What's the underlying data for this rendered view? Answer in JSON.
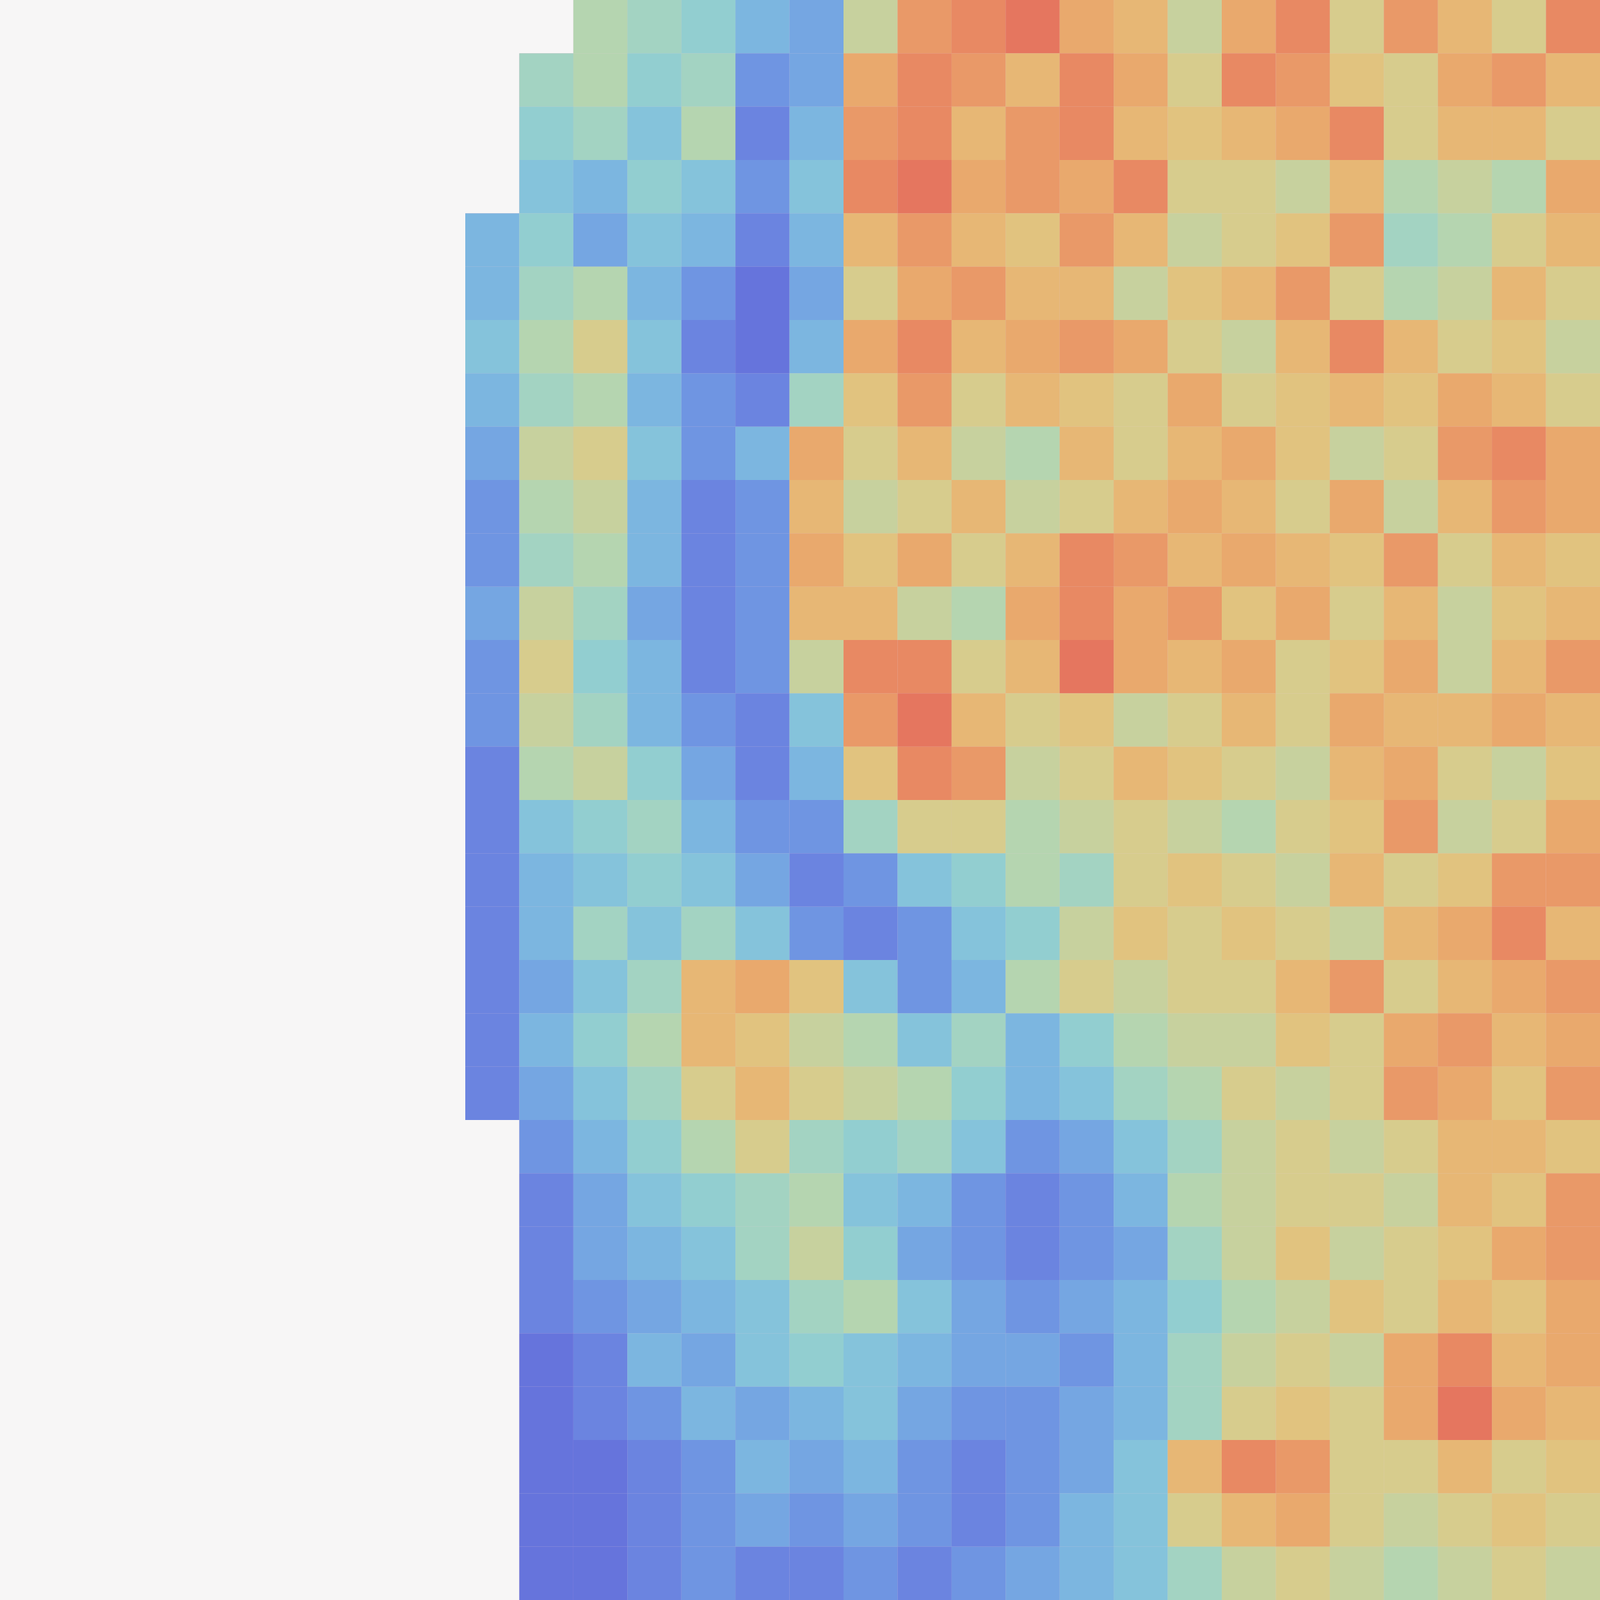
{
  "chart_data": {
    "type": "heatmap",
    "tick_labels": false,
    "zlim": [
      0,
      1
    ],
    "cells": [
      [
        null,
        null,
        0.5,
        0.45,
        0.4,
        0.3,
        0.25,
        0.55,
        0.8,
        0.85,
        0.9,
        0.75,
        0.7,
        0.55,
        0.75,
        0.85,
        0.6,
        0.8,
        0.7,
        0.6,
        0.85
      ],
      [
        null,
        0.45,
        0.5,
        0.4,
        0.45,
        0.2,
        0.25,
        0.75,
        0.85,
        0.8,
        0.7,
        0.85,
        0.75,
        0.6,
        0.85,
        0.8,
        0.65,
        0.6,
        0.75,
        0.8,
        0.7
      ],
      [
        null,
        0.4,
        0.45,
        0.35,
        0.5,
        0.15,
        0.3,
        0.8,
        0.85,
        0.7,
        0.8,
        0.85,
        0.7,
        0.65,
        0.7,
        0.75,
        0.85,
        0.6,
        0.7,
        0.7,
        0.6
      ],
      [
        null,
        0.35,
        0.3,
        0.4,
        0.35,
        0.2,
        0.35,
        0.85,
        0.9,
        0.75,
        0.8,
        0.75,
        0.85,
        0.6,
        0.6,
        0.55,
        0.7,
        0.5,
        0.55,
        0.5,
        0.75
      ],
      [
        0.3,
        0.4,
        0.25,
        0.35,
        0.3,
        0.15,
        0.3,
        0.7,
        0.8,
        0.7,
        0.65,
        0.8,
        0.7,
        0.55,
        0.6,
        0.65,
        0.8,
        0.45,
        0.5,
        0.6,
        0.7
      ],
      [
        0.3,
        0.45,
        0.5,
        0.3,
        0.2,
        0.1,
        0.25,
        0.6,
        0.75,
        0.8,
        0.7,
        0.7,
        0.55,
        0.65,
        0.7,
        0.8,
        0.6,
        0.5,
        0.55,
        0.7,
        0.6
      ],
      [
        0.35,
        0.5,
        0.6,
        0.35,
        0.15,
        0.1,
        0.3,
        0.75,
        0.85,
        0.7,
        0.75,
        0.8,
        0.75,
        0.6,
        0.55,
        0.7,
        0.85,
        0.7,
        0.6,
        0.65,
        0.55
      ],
      [
        0.3,
        0.45,
        0.5,
        0.3,
        0.2,
        0.15,
        0.45,
        0.65,
        0.8,
        0.6,
        0.7,
        0.65,
        0.6,
        0.75,
        0.6,
        0.65,
        0.7,
        0.65,
        0.75,
        0.7,
        0.6
      ],
      [
        0.25,
        0.55,
        0.6,
        0.35,
        0.2,
        0.3,
        0.75,
        0.6,
        0.7,
        0.55,
        0.5,
        0.7,
        0.6,
        0.7,
        0.75,
        0.65,
        0.55,
        0.6,
        0.8,
        0.85,
        0.75
      ],
      [
        0.2,
        0.5,
        0.55,
        0.3,
        0.15,
        0.2,
        0.7,
        0.55,
        0.6,
        0.7,
        0.55,
        0.6,
        0.7,
        0.75,
        0.7,
        0.6,
        0.75,
        0.55,
        0.7,
        0.8,
        0.75
      ],
      [
        0.2,
        0.45,
        0.5,
        0.3,
        0.15,
        0.2,
        0.75,
        0.65,
        0.75,
        0.6,
        0.7,
        0.85,
        0.8,
        0.7,
        0.75,
        0.7,
        0.65,
        0.8,
        0.6,
        0.7,
        0.65
      ],
      [
        0.25,
        0.55,
        0.45,
        0.25,
        0.15,
        0.2,
        0.7,
        0.7,
        0.55,
        0.5,
        0.75,
        0.85,
        0.75,
        0.8,
        0.65,
        0.75,
        0.6,
        0.7,
        0.55,
        0.65,
        0.7
      ],
      [
        0.2,
        0.6,
        0.4,
        0.3,
        0.15,
        0.2,
        0.55,
        0.85,
        0.85,
        0.6,
        0.7,
        0.9,
        0.75,
        0.7,
        0.75,
        0.6,
        0.65,
        0.75,
        0.55,
        0.7,
        0.8
      ],
      [
        0.2,
        0.55,
        0.45,
        0.3,
        0.2,
        0.15,
        0.35,
        0.8,
        0.9,
        0.7,
        0.6,
        0.65,
        0.55,
        0.6,
        0.7,
        0.6,
        0.75,
        0.7,
        0.7,
        0.75,
        0.7
      ],
      [
        0.15,
        0.5,
        0.55,
        0.4,
        0.25,
        0.15,
        0.3,
        0.65,
        0.85,
        0.8,
        0.55,
        0.6,
        0.7,
        0.65,
        0.6,
        0.55,
        0.7,
        0.75,
        0.6,
        0.55,
        0.65
      ],
      [
        0.15,
        0.35,
        0.4,
        0.45,
        0.3,
        0.2,
        0.2,
        0.45,
        0.6,
        0.6,
        0.5,
        0.55,
        0.6,
        0.55,
        0.5,
        0.6,
        0.65,
        0.8,
        0.55,
        0.6,
        0.75
      ],
      [
        0.15,
        0.3,
        0.35,
        0.4,
        0.35,
        0.25,
        0.15,
        0.2,
        0.35,
        0.4,
        0.5,
        0.45,
        0.6,
        0.65,
        0.6,
        0.55,
        0.7,
        0.6,
        0.65,
        0.8,
        0.8
      ],
      [
        0.15,
        0.3,
        0.45,
        0.35,
        0.45,
        0.35,
        0.2,
        0.15,
        0.2,
        0.35,
        0.4,
        0.55,
        0.65,
        0.6,
        0.65,
        0.6,
        0.55,
        0.7,
        0.75,
        0.85,
        0.7
      ],
      [
        0.15,
        0.25,
        0.35,
        0.45,
        0.7,
        0.75,
        0.65,
        0.35,
        0.2,
        0.3,
        0.5,
        0.6,
        0.55,
        0.6,
        0.6,
        0.7,
        0.8,
        0.6,
        0.7,
        0.75,
        0.8
      ],
      [
        0.15,
        0.3,
        0.4,
        0.5,
        0.7,
        0.65,
        0.55,
        0.5,
        0.35,
        0.45,
        0.3,
        0.4,
        0.5,
        0.55,
        0.55,
        0.65,
        0.6,
        0.75,
        0.8,
        0.7,
        0.75
      ],
      [
        0.15,
        0.25,
        0.35,
        0.45,
        0.6,
        0.7,
        0.6,
        0.55,
        0.5,
        0.4,
        0.3,
        0.35,
        0.45,
        0.5,
        0.6,
        0.55,
        0.6,
        0.8,
        0.75,
        0.65,
        0.8
      ],
      [
        null,
        0.2,
        0.3,
        0.4,
        0.5,
        0.6,
        0.45,
        0.4,
        0.45,
        0.35,
        0.2,
        0.25,
        0.35,
        0.45,
        0.55,
        0.6,
        0.55,
        0.6,
        0.7,
        0.7,
        0.65
      ],
      [
        null,
        0.15,
        0.25,
        0.35,
        0.4,
        0.45,
        0.5,
        0.35,
        0.3,
        0.2,
        0.15,
        0.2,
        0.3,
        0.5,
        0.55,
        0.6,
        0.6,
        0.55,
        0.7,
        0.65,
        0.8
      ],
      [
        null,
        0.15,
        0.25,
        0.3,
        0.35,
        0.45,
        0.55,
        0.4,
        0.25,
        0.2,
        0.15,
        0.2,
        0.25,
        0.45,
        0.55,
        0.65,
        0.55,
        0.6,
        0.65,
        0.75,
        0.8
      ],
      [
        null,
        0.15,
        0.2,
        0.25,
        0.3,
        0.35,
        0.45,
        0.5,
        0.35,
        0.25,
        0.2,
        0.25,
        0.3,
        0.4,
        0.5,
        0.55,
        0.65,
        0.6,
        0.7,
        0.65,
        0.75
      ],
      [
        null,
        0.1,
        0.15,
        0.3,
        0.25,
        0.35,
        0.4,
        0.35,
        0.3,
        0.25,
        0.25,
        0.2,
        0.3,
        0.45,
        0.55,
        0.6,
        0.55,
        0.75,
        0.85,
        0.7,
        0.75
      ],
      [
        null,
        0.1,
        0.15,
        0.2,
        0.3,
        0.25,
        0.3,
        0.35,
        0.25,
        0.2,
        0.2,
        0.25,
        0.3,
        0.45,
        0.6,
        0.65,
        0.6,
        0.75,
        0.9,
        0.75,
        0.7
      ],
      [
        null,
        0.1,
        0.1,
        0.15,
        0.2,
        0.3,
        0.25,
        0.3,
        0.2,
        0.15,
        0.2,
        0.25,
        0.35,
        0.7,
        0.85,
        0.8,
        0.6,
        0.6,
        0.7,
        0.6,
        0.65
      ],
      [
        null,
        0.1,
        0.1,
        0.15,
        0.2,
        0.25,
        0.2,
        0.25,
        0.2,
        0.15,
        0.2,
        0.3,
        0.35,
        0.6,
        0.7,
        0.75,
        0.6,
        0.55,
        0.6,
        0.65,
        0.6
      ],
      [
        null,
        0.1,
        0.1,
        0.15,
        0.2,
        0.15,
        0.15,
        0.2,
        0.15,
        0.2,
        0.25,
        0.3,
        0.35,
        0.45,
        0.55,
        0.6,
        0.55,
        0.5,
        0.55,
        0.6,
        0.55
      ]
    ]
  }
}
